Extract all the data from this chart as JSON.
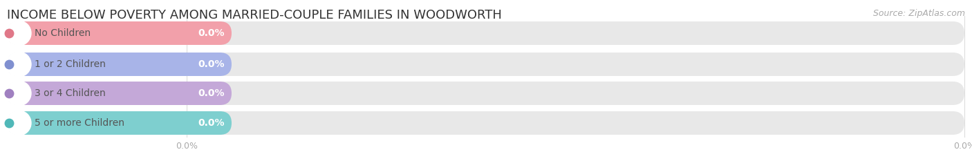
{
  "title": "INCOME BELOW POVERTY AMONG MARRIED-COUPLE FAMILIES IN WOODWORTH",
  "source": "Source: ZipAtlas.com",
  "categories": [
    "No Children",
    "1 or 2 Children",
    "3 or 4 Children",
    "5 or more Children"
  ],
  "values": [
    0.0,
    0.0,
    0.0,
    0.0
  ],
  "bar_colors": [
    "#f2a0aa",
    "#a8b4e8",
    "#c4a8d8",
    "#7ecfcf"
  ],
  "dot_colors": [
    "#e07888",
    "#8090d0",
    "#a080c0",
    "#50b8b8"
  ],
  "background_color": "#ffffff",
  "bar_bg_color": "#e8e8e8",
  "title_color": "#333333",
  "title_fontsize": 13,
  "source_fontsize": 9,
  "label_fontsize": 10,
  "value_fontsize": 10,
  "tick_fontsize": 9,
  "tick_color": "#aaaaaa"
}
